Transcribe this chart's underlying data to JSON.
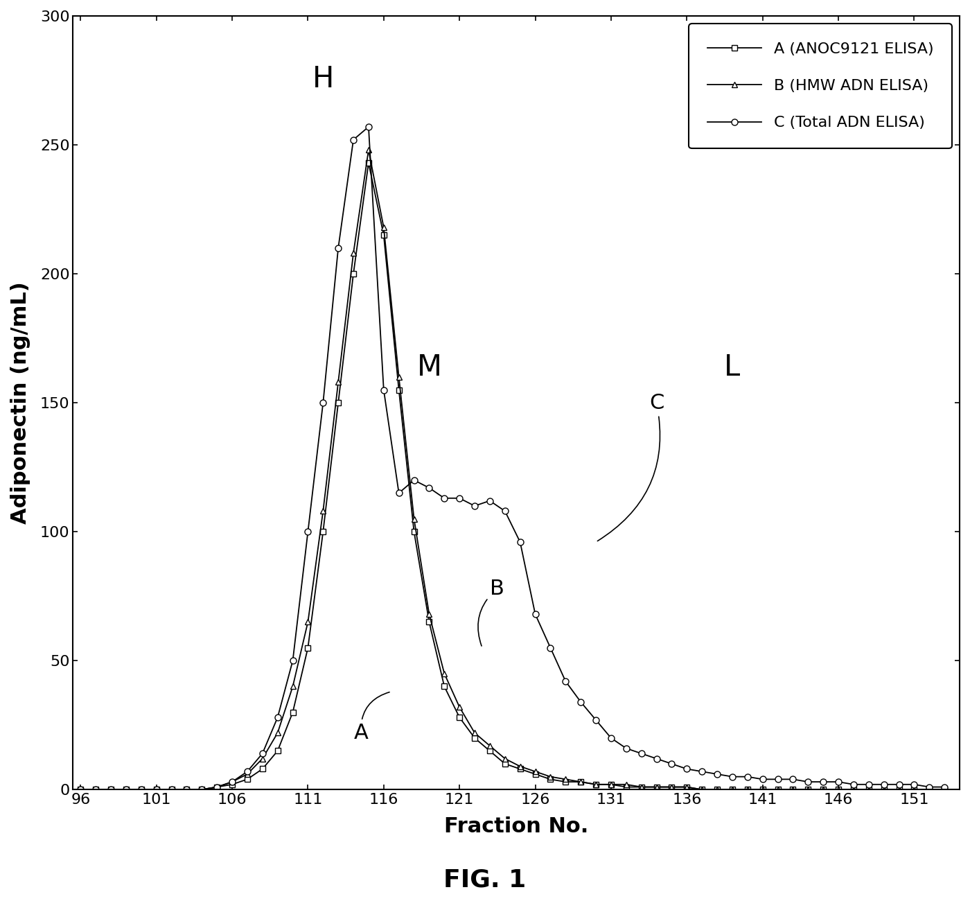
{
  "title": "FIG. 1",
  "xlabel": "Fraction No.",
  "ylabel": "Adiponectin (ng/mL)",
  "xlim": [
    95.5,
    154
  ],
  "ylim": [
    0,
    300
  ],
  "xticks": [
    96,
    101,
    106,
    111,
    116,
    121,
    126,
    131,
    136,
    141,
    146,
    151
  ],
  "yticks": [
    0,
    50,
    100,
    150,
    200,
    250,
    300
  ],
  "legend_labels": [
    "A (ANOC9121 ELISA)",
    "B (HMW ADN ELISA)",
    "C (Total ADN ELISA)"
  ],
  "line_color": "#000000",
  "background_color": "#ffffff",
  "series_A": {
    "x": [
      96,
      97,
      98,
      99,
      100,
      101,
      102,
      103,
      104,
      105,
      106,
      107,
      108,
      109,
      110,
      111,
      112,
      113,
      114,
      115,
      116,
      117,
      118,
      119,
      120,
      121,
      122,
      123,
      124,
      125,
      126,
      127,
      128,
      129,
      130,
      131,
      132,
      133,
      134,
      135,
      136,
      137,
      138,
      139,
      140,
      141,
      142,
      143,
      144,
      145,
      146,
      147,
      148,
      149,
      150,
      151,
      152,
      153
    ],
    "y": [
      0,
      0,
      0,
      0,
      0,
      0,
      0,
      0,
      0,
      1,
      2,
      4,
      8,
      15,
      30,
      55,
      100,
      150,
      200,
      243,
      215,
      155,
      100,
      65,
      40,
      28,
      20,
      15,
      10,
      8,
      6,
      4,
      3,
      3,
      2,
      2,
      1,
      1,
      1,
      1,
      1,
      0,
      0,
      0,
      0,
      0,
      0,
      0,
      0,
      0,
      0,
      0,
      0,
      0,
      0,
      0,
      0,
      0
    ]
  },
  "series_B": {
    "x": [
      96,
      97,
      98,
      99,
      100,
      101,
      102,
      103,
      104,
      105,
      106,
      107,
      108,
      109,
      110,
      111,
      112,
      113,
      114,
      115,
      116,
      117,
      118,
      119,
      120,
      121,
      122,
      123,
      124,
      125,
      126,
      127,
      128,
      129,
      130,
      131,
      132,
      133,
      134,
      135,
      136,
      137,
      138,
      139,
      140,
      141,
      142,
      143,
      144,
      145,
      146,
      147,
      148,
      149,
      150,
      151,
      152,
      153
    ],
    "y": [
      0,
      0,
      0,
      0,
      0,
      0,
      0,
      0,
      0,
      1,
      3,
      6,
      12,
      22,
      40,
      65,
      108,
      158,
      208,
      248,
      218,
      160,
      105,
      68,
      45,
      32,
      22,
      17,
      12,
      9,
      7,
      5,
      4,
      3,
      2,
      2,
      2,
      1,
      1,
      1,
      1,
      0,
      0,
      0,
      0,
      0,
      0,
      0,
      0,
      0,
      0,
      0,
      0,
      0,
      0,
      0,
      0,
      0
    ]
  },
  "series_C": {
    "x": [
      96,
      97,
      98,
      99,
      100,
      101,
      102,
      103,
      104,
      105,
      106,
      107,
      108,
      109,
      110,
      111,
      112,
      113,
      114,
      115,
      116,
      117,
      118,
      119,
      120,
      121,
      122,
      123,
      124,
      125,
      126,
      127,
      128,
      129,
      130,
      131,
      132,
      133,
      134,
      135,
      136,
      137,
      138,
      139,
      140,
      141,
      142,
      143,
      144,
      145,
      146,
      147,
      148,
      149,
      150,
      151,
      152,
      153
    ],
    "y": [
      0,
      0,
      0,
      0,
      0,
      0,
      0,
      0,
      0,
      1,
      3,
      7,
      14,
      28,
      50,
      100,
      150,
      210,
      252,
      257,
      155,
      115,
      120,
      117,
      113,
      113,
      110,
      112,
      108,
      96,
      68,
      55,
      42,
      34,
      27,
      20,
      16,
      14,
      12,
      10,
      8,
      7,
      6,
      5,
      5,
      4,
      4,
      4,
      3,
      3,
      3,
      2,
      2,
      2,
      2,
      2,
      1,
      1
    ]
  }
}
